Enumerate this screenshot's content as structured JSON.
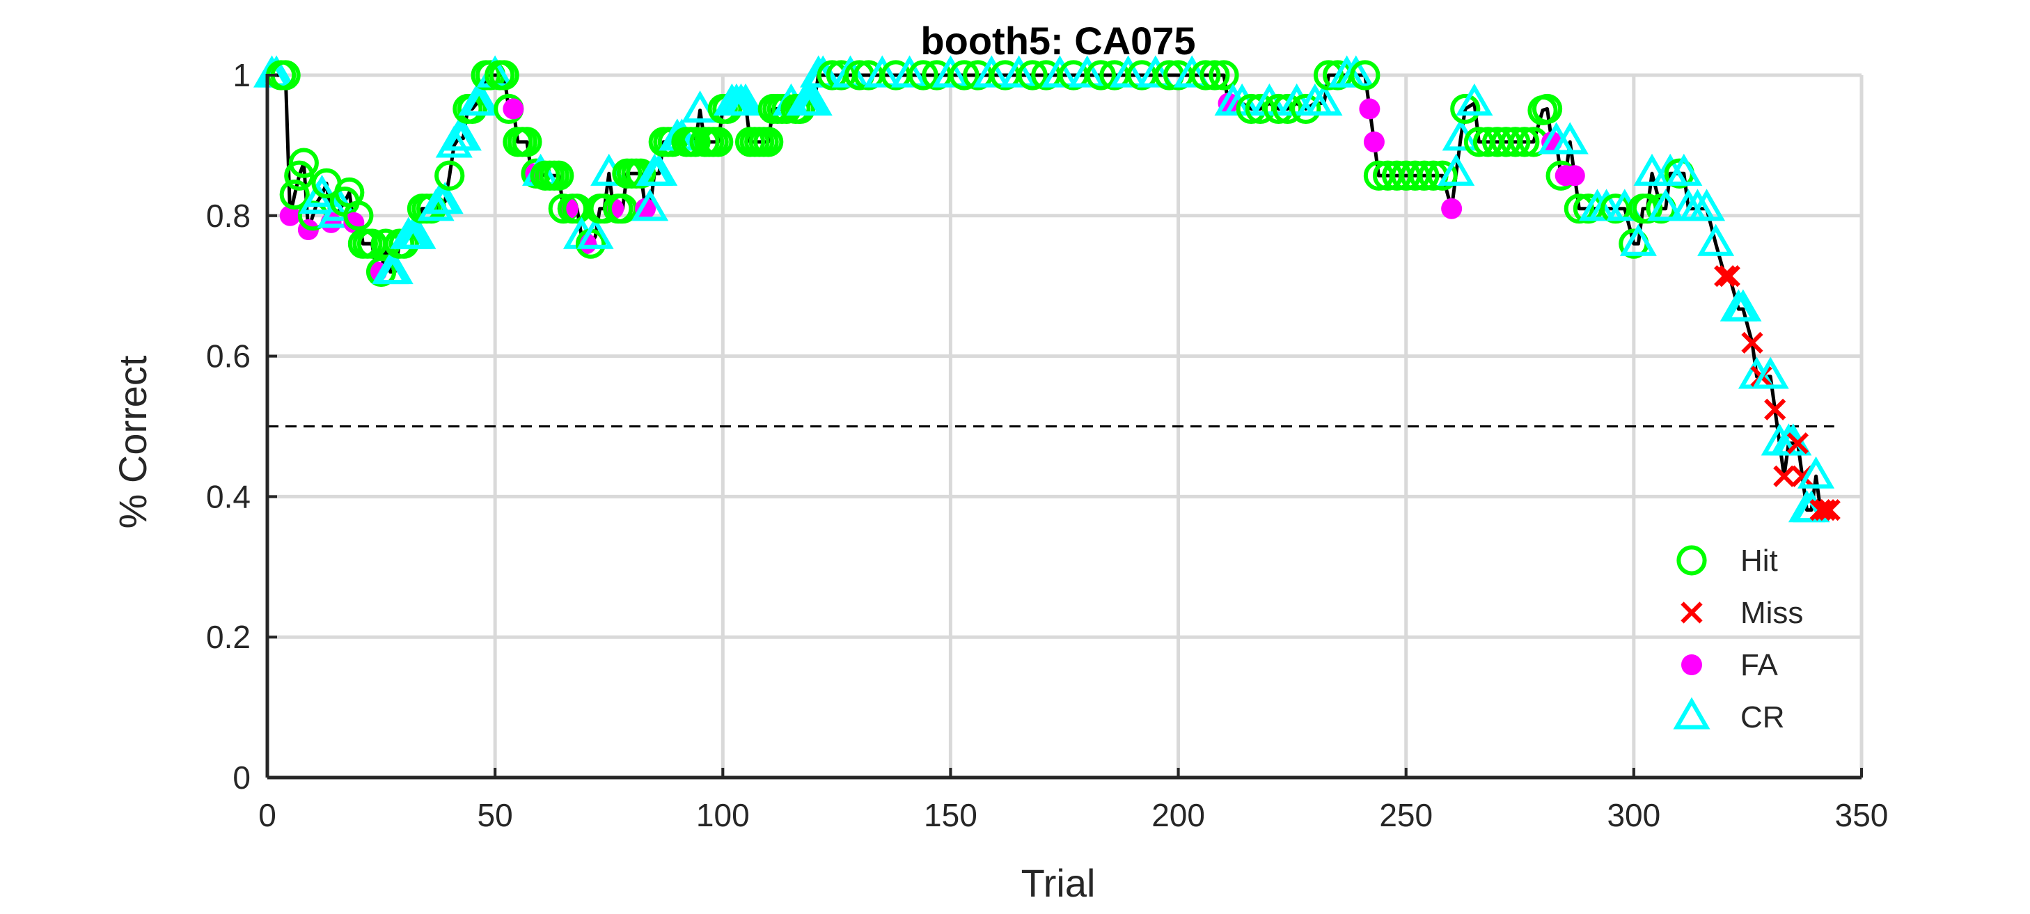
{
  "chart_data": {
    "type": "line",
    "title": "booth5: CA075",
    "xlabel": "Trial",
    "ylabel": "% Correct",
    "xlim": [
      0,
      350
    ],
    "ylim": [
      0,
      1
    ],
    "xticks": [
      "0",
      "50",
      "100",
      "150",
      "200",
      "250",
      "300",
      "350"
    ],
    "yticks": [
      "0",
      "0.2",
      "0.4",
      "0.6",
      "0.8",
      "1"
    ],
    "grid": true,
    "legend_position": "bottom-right",
    "reference_line": {
      "y": 0.5,
      "style": "dashed",
      "x_range": [
        0,
        344
      ]
    },
    "line_color": "#000000",
    "series": [
      {
        "name": "Hit",
        "marker": "open-circle",
        "color": "#00ff00"
      },
      {
        "name": "Miss",
        "marker": "x",
        "color": "#ff0000"
      },
      {
        "name": "FA",
        "marker": "filled-circle",
        "color": "#ff00ff"
      },
      {
        "name": "CR",
        "marker": "open-triangle",
        "color": "#00ffff"
      }
    ],
    "trials": [
      [
        1,
        1.0,
        "CR"
      ],
      [
        2,
        1.0,
        "CR"
      ],
      [
        3,
        1.0,
        "Hit"
      ],
      [
        4,
        1.0,
        "Hit"
      ],
      [
        5,
        0.8,
        "FA"
      ],
      [
        6,
        0.83,
        "Hit"
      ],
      [
        7,
        0.857,
        "Hit"
      ],
      [
        8,
        0.875,
        "Hit"
      ],
      [
        9,
        0.78,
        "FA"
      ],
      [
        10,
        0.8,
        "Hit"
      ],
      [
        11,
        0.82,
        "CR"
      ],
      [
        12,
        0.83,
        "CR"
      ],
      [
        13,
        0.846,
        "Hit"
      ],
      [
        14,
        0.79,
        "FA"
      ],
      [
        15,
        0.8,
        "CR"
      ],
      [
        16,
        0.81,
        "CR"
      ],
      [
        17,
        0.82,
        "Hit"
      ],
      [
        18,
        0.833,
        "Hit"
      ],
      [
        19,
        0.79,
        "FA"
      ],
      [
        20,
        0.8,
        "Hit"
      ],
      [
        21,
        0.76,
        "Hit"
      ],
      [
        22,
        0.76,
        "Hit"
      ],
      [
        23,
        0.76,
        "Hit"
      ],
      [
        24,
        0.72,
        "FA"
      ],
      [
        25,
        0.72,
        "Hit"
      ],
      [
        26,
        0.76,
        "Hit"
      ],
      [
        27,
        0.72,
        "CR"
      ],
      [
        28,
        0.72,
        "CR"
      ],
      [
        29,
        0.76,
        "Hit"
      ],
      [
        30,
        0.76,
        "Hit"
      ],
      [
        31,
        0.77,
        "CR"
      ],
      [
        32,
        0.77,
        "CR"
      ],
      [
        33,
        0.77,
        "CR"
      ],
      [
        34,
        0.81,
        "Hit"
      ],
      [
        35,
        0.81,
        "Hit"
      ],
      [
        36,
        0.81,
        "Hit"
      ],
      [
        37,
        0.81,
        "CR"
      ],
      [
        38,
        0.82,
        "CR"
      ],
      [
        39,
        0.82,
        "CR"
      ],
      [
        40,
        0.857,
        "Hit"
      ],
      [
        41,
        0.9,
        "CR"
      ],
      [
        42,
        0.91,
        "CR"
      ],
      [
        43,
        0.91,
        "CR"
      ],
      [
        44,
        0.952,
        "Hit"
      ],
      [
        45,
        0.952,
        "Hit"
      ],
      [
        46,
        0.96,
        "CR"
      ],
      [
        47,
        0.96,
        "CR"
      ],
      [
        48,
        1.0,
        "Hit"
      ],
      [
        49,
        1.0,
        "Hit"
      ],
      [
        50,
        1.0,
        "CR"
      ],
      [
        51,
        1.0,
        "Hit"
      ],
      [
        52,
        1.0,
        "Hit"
      ],
      [
        53,
        0.952,
        "Hit"
      ],
      [
        54,
        0.952,
        "FA"
      ],
      [
        55,
        0.905,
        "Hit"
      ],
      [
        56,
        0.905,
        "Hit"
      ],
      [
        57,
        0.905,
        "Hit"
      ],
      [
        58,
        0.86,
        "FA"
      ],
      [
        59,
        0.86,
        "Hit"
      ],
      [
        60,
        0.86,
        "CR"
      ],
      [
        61,
        0.857,
        "Hit"
      ],
      [
        62,
        0.857,
        "Hit"
      ],
      [
        63,
        0.857,
        "Hit"
      ],
      [
        64,
        0.857,
        "Hit"
      ],
      [
        65,
        0.81,
        "Hit"
      ],
      [
        66,
        0.81,
        "FA"
      ],
      [
        67,
        0.81,
        "Hit"
      ],
      [
        68,
        0.81,
        "Hit"
      ],
      [
        69,
        0.77,
        "CR"
      ],
      [
        70,
        0.76,
        "FA"
      ],
      [
        71,
        0.76,
        "Hit"
      ],
      [
        72,
        0.77,
        "CR"
      ],
      [
        73,
        0.81,
        "Hit"
      ],
      [
        74,
        0.81,
        "Hit"
      ],
      [
        75,
        0.86,
        "CR"
      ],
      [
        76,
        0.81,
        "FA"
      ],
      [
        77,
        0.81,
        "Hit"
      ],
      [
        78,
        0.81,
        "Hit"
      ],
      [
        79,
        0.86,
        "Hit"
      ],
      [
        80,
        0.86,
        "Hit"
      ],
      [
        81,
        0.86,
        "Hit"
      ],
      [
        82,
        0.86,
        "Hit"
      ],
      [
        83,
        0.81,
        "FA"
      ],
      [
        84,
        0.81,
        "CR"
      ],
      [
        85,
        0.86,
        "CR"
      ],
      [
        86,
        0.86,
        "CR"
      ],
      [
        87,
        0.905,
        "Hit"
      ],
      [
        88,
        0.905,
        "Hit"
      ],
      [
        89,
        0.905,
        "Hit"
      ],
      [
        90,
        0.91,
        "CR"
      ],
      [
        91,
        0.91,
        "CR"
      ],
      [
        92,
        0.905,
        "Hit"
      ],
      [
        93,
        0.905,
        "Hit"
      ],
      [
        94,
        0.905,
        "Hit"
      ],
      [
        95,
        0.95,
        "CR"
      ],
      [
        96,
        0.905,
        "Hit"
      ],
      [
        97,
        0.905,
        "Hit"
      ],
      [
        98,
        0.905,
        "Hit"
      ],
      [
        99,
        0.905,
        "Hit"
      ],
      [
        100,
        0.952,
        "Hit"
      ],
      [
        101,
        0.952,
        "Hit"
      ],
      [
        102,
        0.96,
        "CR"
      ],
      [
        103,
        0.96,
        "CR"
      ],
      [
        104,
        0.96,
        "CR"
      ],
      [
        105,
        0.96,
        "CR"
      ],
      [
        106,
        0.905,
        "Hit"
      ],
      [
        107,
        0.905,
        "Hit"
      ],
      [
        108,
        0.905,
        "Hit"
      ],
      [
        109,
        0.905,
        "Hit"
      ],
      [
        110,
        0.905,
        "Hit"
      ],
      [
        111,
        0.952,
        "Hit"
      ],
      [
        112,
        0.952,
        "Hit"
      ],
      [
        113,
        0.952,
        "Hit"
      ],
      [
        114,
        0.952,
        "Hit"
      ],
      [
        115,
        0.96,
        "CR"
      ],
      [
        116,
        0.952,
        "Hit"
      ],
      [
        117,
        0.952,
        "Hit"
      ],
      [
        118,
        0.96,
        "CR"
      ],
      [
        119,
        0.96,
        "CR"
      ],
      [
        120,
        0.96,
        "CR"
      ],
      [
        121,
        1.0,
        "CR"
      ],
      [
        122,
        1.0,
        "CR"
      ],
      [
        124,
        1.0,
        "Hit"
      ],
      [
        126,
        1.0,
        "Hit"
      ],
      [
        128,
        1.0,
        "CR"
      ],
      [
        130,
        1.0,
        "Hit"
      ],
      [
        132,
        1.0,
        "Hit"
      ],
      [
        135,
        1.0,
        "CR"
      ],
      [
        138,
        1.0,
        "Hit"
      ],
      [
        141,
        1.0,
        "CR"
      ],
      [
        144,
        1.0,
        "Hit"
      ],
      [
        147,
        1.0,
        "Hit"
      ],
      [
        150,
        1.0,
        "CR"
      ],
      [
        153,
        1.0,
        "Hit"
      ],
      [
        156,
        1.0,
        "Hit"
      ],
      [
        159,
        1.0,
        "CR"
      ],
      [
        162,
        1.0,
        "Hit"
      ],
      [
        165,
        1.0,
        "CR"
      ],
      [
        168,
        1.0,
        "Hit"
      ],
      [
        171,
        1.0,
        "Hit"
      ],
      [
        174,
        1.0,
        "CR"
      ],
      [
        177,
        1.0,
        "Hit"
      ],
      [
        180,
        1.0,
        "CR"
      ],
      [
        183,
        1.0,
        "Hit"
      ],
      [
        186,
        1.0,
        "Hit"
      ],
      [
        189,
        1.0,
        "CR"
      ],
      [
        192,
        1.0,
        "Hit"
      ],
      [
        195,
        1.0,
        "CR"
      ],
      [
        198,
        1.0,
        "Hit"
      ],
      [
        200,
        1.0,
        "Hit"
      ],
      [
        203,
        1.0,
        "CR"
      ],
      [
        206,
        1.0,
        "Hit"
      ],
      [
        208,
        1.0,
        "Hit"
      ],
      [
        210,
        1.0,
        "Hit"
      ],
      [
        211,
        0.96,
        "FA"
      ],
      [
        212,
        0.96,
        "CR"
      ],
      [
        214,
        0.96,
        "CR"
      ],
      [
        216,
        0.952,
        "Hit"
      ],
      [
        218,
        0.952,
        "Hit"
      ],
      [
        220,
        0.96,
        "CR"
      ],
      [
        222,
        0.952,
        "Hit"
      ],
      [
        224,
        0.952,
        "Hit"
      ],
      [
        226,
        0.96,
        "CR"
      ],
      [
        228,
        0.952,
        "Hit"
      ],
      [
        230,
        0.96,
        "CR"
      ],
      [
        232,
        0.96,
        "CR"
      ],
      [
        233,
        1.0,
        "Hit"
      ],
      [
        235,
        1.0,
        "Hit"
      ],
      [
        237,
        1.0,
        "CR"
      ],
      [
        239,
        1.0,
        "CR"
      ],
      [
        241,
        1.0,
        "Hit"
      ],
      [
        242,
        0.952,
        "FA"
      ],
      [
        243,
        0.905,
        "FA"
      ],
      [
        244,
        0.857,
        "Hit"
      ],
      [
        246,
        0.857,
        "Hit"
      ],
      [
        248,
        0.857,
        "Hit"
      ],
      [
        250,
        0.857,
        "Hit"
      ],
      [
        252,
        0.857,
        "Hit"
      ],
      [
        254,
        0.857,
        "Hit"
      ],
      [
        256,
        0.857,
        "Hit"
      ],
      [
        258,
        0.857,
        "Hit"
      ],
      [
        260,
        0.81,
        "FA"
      ],
      [
        261,
        0.86,
        "CR"
      ],
      [
        262,
        0.91,
        "CR"
      ],
      [
        263,
        0.952,
        "Hit"
      ],
      [
        265,
        0.96,
        "CR"
      ],
      [
        266,
        0.905,
        "Hit"
      ],
      [
        268,
        0.905,
        "Hit"
      ],
      [
        270,
        0.905,
        "Hit"
      ],
      [
        272,
        0.905,
        "Hit"
      ],
      [
        274,
        0.905,
        "Hit"
      ],
      [
        276,
        0.905,
        "Hit"
      ],
      [
        278,
        0.905,
        "Hit"
      ],
      [
        280,
        0.95,
        "Hit"
      ],
      [
        281,
        0.952,
        "Hit"
      ],
      [
        282,
        0.905,
        "FA"
      ],
      [
        283,
        0.905,
        "CR"
      ],
      [
        284,
        0.857,
        "Hit"
      ],
      [
        285,
        0.857,
        "FA"
      ],
      [
        286,
        0.905,
        "CR"
      ],
      [
        287,
        0.857,
        "FA"
      ],
      [
        288,
        0.81,
        "Hit"
      ],
      [
        290,
        0.81,
        "Hit"
      ],
      [
        292,
        0.81,
        "CR"
      ],
      [
        294,
        0.81,
        "CR"
      ],
      [
        296,
        0.81,
        "Hit"
      ],
      [
        298,
        0.81,
        "CR"
      ],
      [
        300,
        0.76,
        "Hit"
      ],
      [
        301,
        0.76,
        "CR"
      ],
      [
        302,
        0.81,
        "Hit"
      ],
      [
        303,
        0.81,
        "Hit"
      ],
      [
        304,
        0.86,
        "CR"
      ],
      [
        306,
        0.81,
        "Hit"
      ],
      [
        307,
        0.81,
        "CR"
      ],
      [
        308,
        0.86,
        "CR"
      ],
      [
        310,
        0.86,
        "Hit"
      ],
      [
        311,
        0.86,
        "CR"
      ],
      [
        312,
        0.81,
        "CR"
      ],
      [
        314,
        0.81,
        "CR"
      ],
      [
        316,
        0.81,
        "CR"
      ],
      [
        318,
        0.76,
        "CR"
      ],
      [
        320,
        0.714,
        "Miss"
      ],
      [
        321,
        0.714,
        "Miss"
      ],
      [
        323,
        0.667,
        "CR"
      ],
      [
        324,
        0.667,
        "CR"
      ],
      [
        326,
        0.619,
        "Miss"
      ],
      [
        327,
        0.571,
        "CR"
      ],
      [
        328,
        0.571,
        "Miss"
      ],
      [
        330,
        0.571,
        "CR"
      ],
      [
        331,
        0.524,
        "Miss"
      ],
      [
        332,
        0.476,
        "CR"
      ],
      [
        333,
        0.429,
        "Miss"
      ],
      [
        334,
        0.476,
        "CR"
      ],
      [
        335,
        0.476,
        "CR"
      ],
      [
        336,
        0.476,
        "Miss"
      ],
      [
        337,
        0.429,
        "Miss"
      ],
      [
        338,
        0.381,
        "CR"
      ],
      [
        339,
        0.381,
        "CR"
      ],
      [
        340,
        0.429,
        "CR"
      ],
      [
        341,
        0.381,
        "Miss"
      ],
      [
        342,
        0.381,
        "Miss"
      ],
      [
        343,
        0.381,
        "Miss"
      ]
    ]
  }
}
